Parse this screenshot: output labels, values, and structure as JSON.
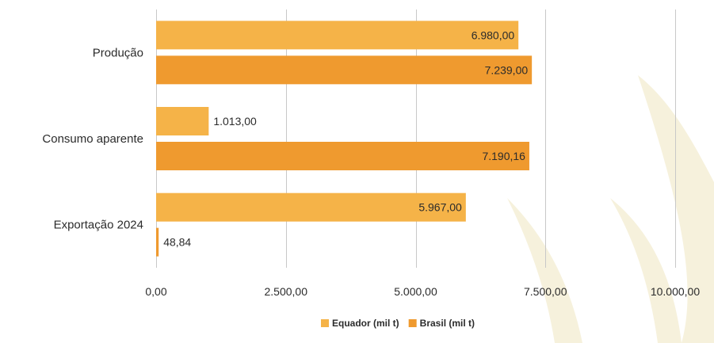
{
  "chart_data": {
    "type": "bar",
    "orientation": "horizontal",
    "title": "",
    "xlabel": "",
    "ylabel": "",
    "xlim": [
      0,
      10000
    ],
    "grid": true,
    "legend_position": "bottom",
    "categories": [
      "Produção",
      "Consumo aparente",
      "Exportação 2024"
    ],
    "x_ticks": [
      0,
      2500,
      5000,
      7500,
      10000
    ],
    "x_tick_labels": [
      "0,00",
      "2.500,00",
      "5.000,00",
      "7.500,00",
      "10.000,00"
    ],
    "series": [
      {
        "name": "Equador (mil t)",
        "color": "#f5b348",
        "values": [
          6980.0,
          1013.0,
          5967.0
        ],
        "labels": [
          "6.980,00",
          "1.013,00",
          "5.967,00"
        ]
      },
      {
        "name": "Brasil (mil t)",
        "color": "#ef9a2f",
        "values": [
          7239.0,
          7190.16,
          48.84
        ],
        "labels": [
          "7.239,00",
          "7.190,16",
          "48,84"
        ]
      }
    ]
  }
}
